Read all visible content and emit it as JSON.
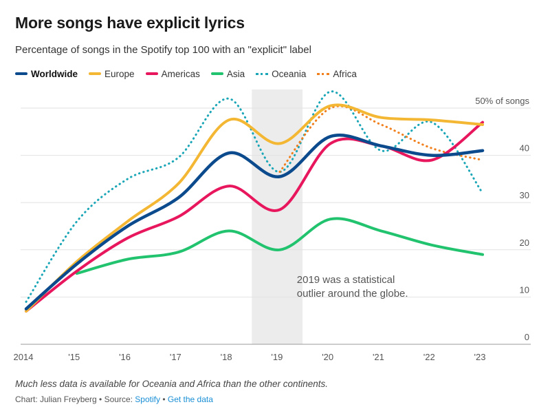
{
  "chart_data": {
    "type": "line",
    "title": "More songs have explicit lyrics",
    "subtitle": "Percentage of songs in the Spotify top 100 with an \"explicit\" label",
    "x": [
      2014,
      2015,
      2016,
      2017,
      2018,
      2019,
      2020,
      2021,
      2022,
      2023
    ],
    "x_tick_labels": [
      "2014",
      "'15",
      "'16",
      "'17",
      "'18",
      "'19",
      "'20",
      "'21",
      "'22",
      "'23"
    ],
    "y_tick_labels": [
      "0",
      "10",
      "20",
      "30",
      "40",
      "50% of songs"
    ],
    "y_ticks": [
      0,
      10,
      20,
      30,
      40,
      50
    ],
    "ylim": [
      0,
      55
    ],
    "grid": true,
    "legend_position": "top-left",
    "series": [
      {
        "name": "Worldwide",
        "style": "solid",
        "color": "#0b4a8c",
        "bold": true,
        "x": [
          2014,
          2015,
          2016,
          2017,
          2018,
          2019,
          2020,
          2021,
          2022,
          2023
        ],
        "values": [
          7.5,
          17,
          25,
          31,
          40.5,
          35.5,
          44,
          42,
          40,
          41
        ]
      },
      {
        "name": "Europe",
        "style": "solid",
        "color": "#f4b733",
        "x": [
          2014,
          2015,
          2016,
          2017,
          2018,
          2019,
          2020,
          2021,
          2022,
          2023
        ],
        "values": [
          7,
          17.5,
          26,
          34,
          47.5,
          42.5,
          50.5,
          48,
          47.5,
          46.5
        ]
      },
      {
        "name": "Americas",
        "style": "solid",
        "color": "#e8175d",
        "x": [
          2014,
          2015,
          2016,
          2017,
          2018,
          2019,
          2020,
          2021,
          2022,
          2023
        ],
        "values": [
          7,
          15.5,
          22.5,
          27,
          33.5,
          28.5,
          42.5,
          42,
          39,
          47
        ]
      },
      {
        "name": "Asia",
        "style": "solid",
        "color": "#22c36e",
        "x": [
          2015,
          2016,
          2017,
          2018,
          2019,
          2020,
          2021,
          2022,
          2023
        ],
        "values": [
          15,
          18,
          19.5,
          24,
          20,
          26.5,
          24,
          21,
          19
        ]
      },
      {
        "name": "Oceania",
        "style": "dotted",
        "color": "#1aa6b7",
        "x": [
          2014,
          2015,
          2016,
          2017,
          2018,
          2019,
          2020,
          2021,
          2022,
          2023
        ],
        "values": [
          9,
          26,
          35,
          39.5,
          52,
          36.5,
          53.5,
          41,
          47,
          32
        ]
      },
      {
        "name": "Africa",
        "style": "dotted",
        "color": "#f07f1c",
        "x": [
          2019,
          2020,
          2021,
          2022,
          2023
        ],
        "values": [
          36.5,
          50,
          46.5,
          41.5,
          39
        ]
      }
    ],
    "highlight_band": {
      "x_from": 2018.45,
      "x_to": 2019.45
    },
    "annotation": {
      "x": 2019.5,
      "y": 13,
      "lines": [
        "2019 was a statistical",
        "outlier around the globe."
      ]
    }
  },
  "footnote": "Much less data is available for Oceania and Africa than the other continents.",
  "credit": {
    "chart_by": "Chart: Julian Freyberg",
    "separator": " • ",
    "source_prefix": "Source: ",
    "source": "Spotify",
    "get_data": "Get the data"
  }
}
